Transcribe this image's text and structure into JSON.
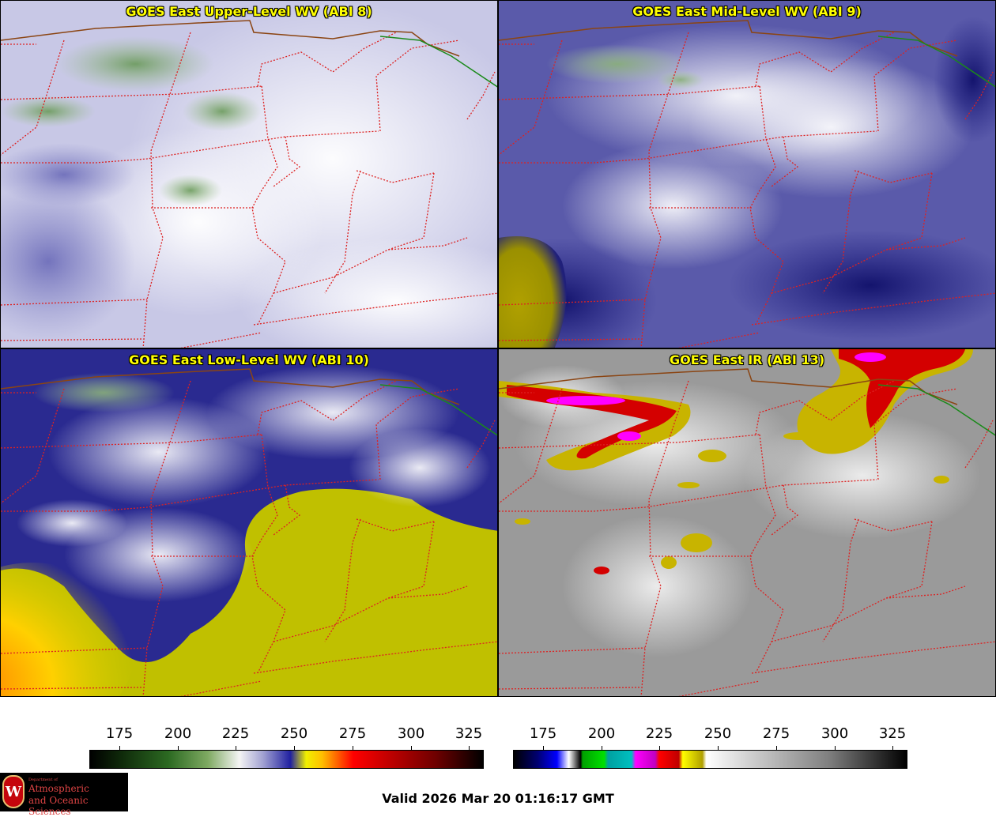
{
  "panels": [
    {
      "title": "GOES East Upper-Level WV (ABI 8)",
      "palette": "upper"
    },
    {
      "title": "GOES East Mid-Level WV (ABI 9)",
      "palette": "mid"
    },
    {
      "title": "GOES East Low-Level WV (ABI 10)",
      "palette": "low"
    },
    {
      "title": "GOES East IR (ABI 13)",
      "palette": "ir"
    }
  ],
  "colorbars": {
    "wv": {
      "ticks": [
        "175",
        "200",
        "225",
        "250",
        "275",
        "300",
        "325"
      ]
    },
    "ir": {
      "ticks": [
        "175",
        "200",
        "225",
        "250",
        "275",
        "300",
        "325"
      ]
    }
  },
  "valid_time": "Valid 2026 Mar 20 01:16:17 GMT",
  "logo": {
    "dept": "Department of",
    "line1": "Atmospheric",
    "line2": "and Oceanic Sciences",
    "seal": "W"
  },
  "colors": {
    "state_border": "#dd2222",
    "national_border": "#8b4513",
    "coast_line": "#1a8a1a",
    "title_text": "#ffff00"
  }
}
